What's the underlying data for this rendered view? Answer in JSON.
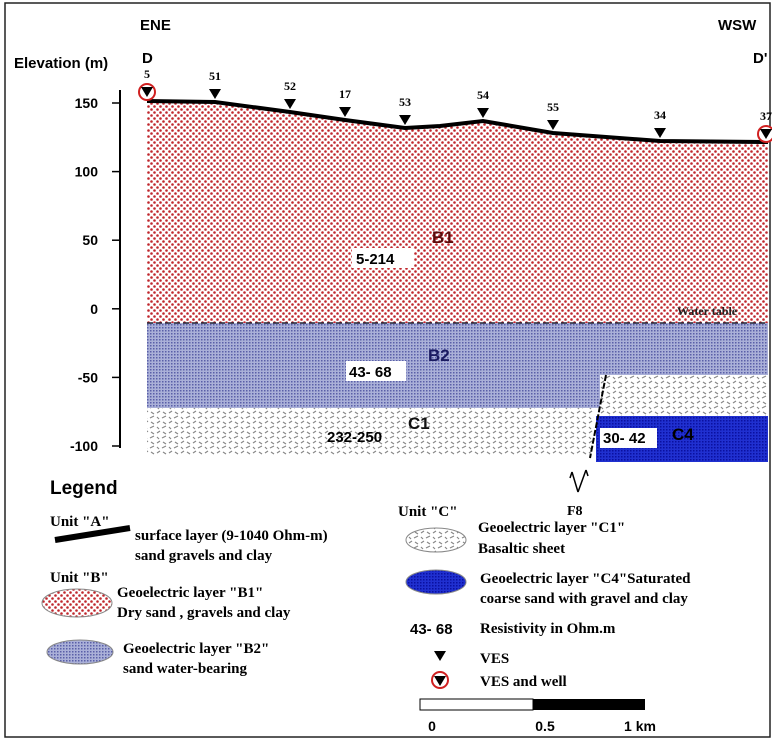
{
  "header": {
    "left": "ENE",
    "right": "WSW",
    "start": "D",
    "end": "D'"
  },
  "axis": {
    "title": "Elevation (m)",
    "ticks": [
      "150",
      "100",
      "50",
      "0",
      "-50",
      "-100"
    ]
  },
  "ves_labels": [
    "5",
    "51",
    "52",
    "17",
    "53",
    "54",
    "55",
    "34",
    "37"
  ],
  "section": {
    "b1": "B1",
    "b1_range": "5-214",
    "water_table": "Water table",
    "b2": "B2",
    "b2_range": "43- 68",
    "c1": "C1",
    "c1_range": "232-250",
    "c4": "C4",
    "c4_range": "30- 42",
    "fault": "F8"
  },
  "legend": {
    "title": "Legend",
    "unit_a": {
      "title": "Unit \"A\"",
      "line1": "surface layer (9-1040 Ohm-m)",
      "line2": "sand gravels and clay"
    },
    "unit_b": {
      "title": "Unit \"B\"",
      "b1_line1": "Geoelectric layer \"B1\"",
      "b1_line2": "Dry sand , gravels and clay",
      "b2_line1": "Geoelectric layer \"B2\"",
      "b2_line2": "sand water-bearing"
    },
    "unit_c": {
      "title": "Unit \"C\"",
      "c1_line1": "Geoelectric layer \"C1\"",
      "c1_line2": "Basaltic sheet",
      "c4_line1": "Geoelectric layer \"C4\"Saturated",
      "c4_line2": "coarse sand with gravel and clay"
    },
    "resistivity_sample": "43- 68",
    "resistivity": "Resistivity in Ohm.m",
    "ves": "VES",
    "ves_well": "VES and well",
    "scale": [
      "0",
      "0.5",
      "1 km"
    ]
  }
}
